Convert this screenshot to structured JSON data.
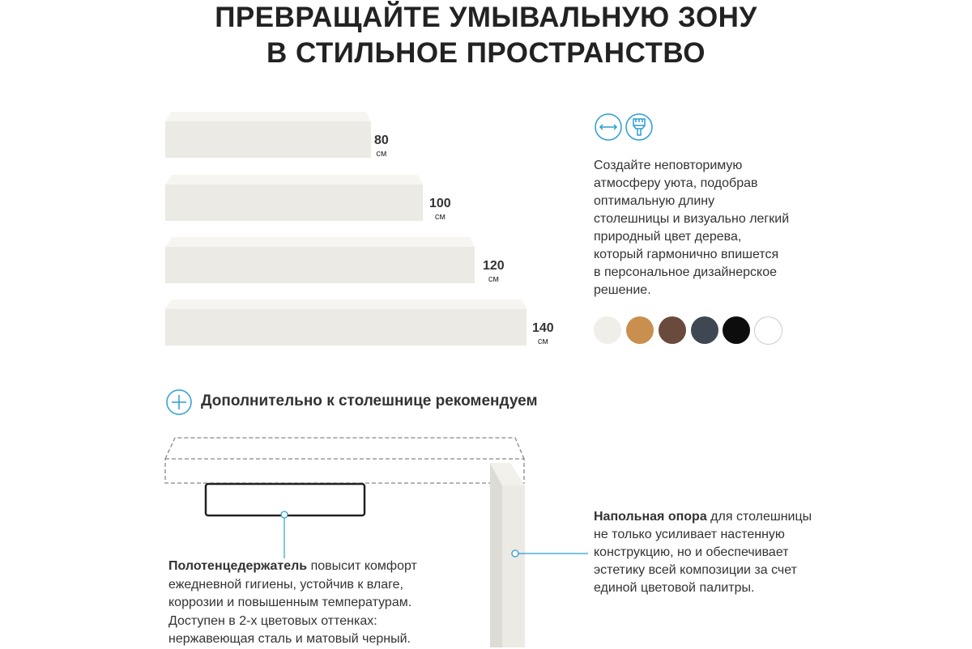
{
  "title": {
    "line1": "ПРЕВРАЩАЙТЕ УМЫВАЛЬНУЮ ЗОНУ",
    "line2": "В СТИЛЬНОЕ ПРОСТРАНСТВО"
  },
  "sizes": [
    {
      "value": "80",
      "unit": "см"
    },
    {
      "value": "100",
      "unit": "см"
    },
    {
      "value": "120",
      "unit": "см"
    },
    {
      "value": "140",
      "unit": "см"
    }
  ],
  "icons": [
    "width-arrows-icon",
    "paint-brush-icon"
  ],
  "accent_color": "#2a9fd0",
  "description": [
    "Создайте неповторимую",
    "атмосферу уюта, подобрав",
    "оптимальную длину",
    "столешницы и визуально легкий",
    "природный цвет дерева,",
    "который гармонично впишется",
    "в персональное дизайнерское",
    "решение."
  ],
  "swatches": [
    "#efeee8",
    "#c98f4e",
    "#6a4a3c",
    "#3f4752",
    "#0d0d0d",
    "#ffffff"
  ],
  "recommend": {
    "heading": "Дополнительно к столешнице рекомендуем"
  },
  "towel": {
    "bold": "Полотенцедержатель",
    "lines": [
      " повысит комфорт",
      "ежедневной гигиены, устойчив к влаге,",
      "коррозии и повышенным температурам.",
      "Доступен в 2-х цветовых оттенках:",
      "нержавеющая сталь и матовый черный."
    ]
  },
  "support": {
    "bold": "Напольная опора",
    "lines": [
      " для столешницы",
      "не только усиливает настенную",
      "конструкцию, но и обеспечивает",
      "эстетику всей композиции за счет",
      "единой цветовой палитры."
    ]
  }
}
